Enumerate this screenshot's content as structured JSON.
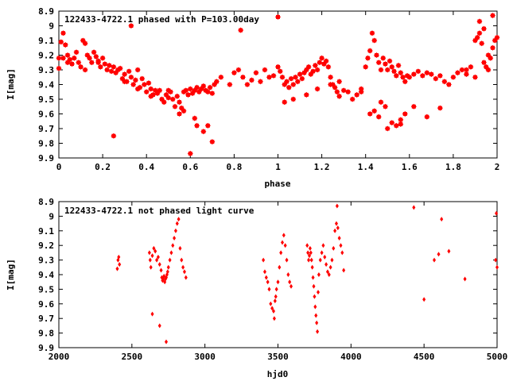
{
  "chart_data": [
    {
      "type": "scatter",
      "title": "122433-4722.1 phased with P=103.00day",
      "xlabel": "phase",
      "ylabel": "I[mag]",
      "xlim": [
        0,
        2
      ],
      "ylim": [
        9.9,
        8.9
      ],
      "y_inverted": true,
      "xticks": [
        "0",
        "0.2",
        "0.4",
        "0.6",
        "0.8",
        "1",
        "1.2",
        "1.4",
        "1.6",
        "1.8",
        "2"
      ],
      "yticks": [
        "8.9",
        "9",
        "9.1",
        "9.2",
        "9.3",
        "9.4",
        "9.5",
        "9.6",
        "9.7",
        "9.8",
        "9.9"
      ],
      "grid": false,
      "marker": "star",
      "color": "#ff0000",
      "series": [
        {
          "x": [
            0.0,
            0.01,
            0.02,
            0.03,
            0.04,
            0.05,
            0.06,
            0.07,
            0.08,
            0.09,
            0.1,
            0.11,
            0.12,
            0.13,
            0.14,
            0.15,
            0.16,
            0.17,
            0.18,
            0.19,
            0.2,
            0.21,
            0.22,
            0.23,
            0.24,
            0.25,
            0.26,
            0.27,
            0.28,
            0.29,
            0.3,
            0.31,
            0.32,
            0.33,
            0.34,
            0.35,
            0.36,
            0.37,
            0.38,
            0.39,
            0.4,
            0.41,
            0.42,
            0.43,
            0.44,
            0.45,
            0.46,
            0.47,
            0.48,
            0.49,
            0.5,
            0.51,
            0.52,
            0.53,
            0.54,
            0.55,
            0.56,
            0.57,
            0.58,
            0.59,
            0.6,
            0.61,
            0.62,
            0.63,
            0.64,
            0.65,
            0.66,
            0.67,
            0.68,
            0.69,
            0.7,
            0.71,
            0.72,
            0.74,
            0.78,
            0.8,
            0.82,
            0.84,
            0.86,
            0.88,
            0.9,
            0.92,
            0.94,
            0.96,
            0.98,
            1.0,
            1.01,
            1.02,
            1.03,
            1.04,
            1.05,
            1.06,
            1.07,
            1.08,
            1.09,
            1.1,
            1.11,
            1.12,
            1.13,
            1.14,
            1.15,
            1.16,
            1.17,
            1.18,
            1.19,
            1.2,
            1.21,
            1.22,
            1.23,
            1.24,
            1.25,
            1.26,
            1.27,
            1.28,
            1.3,
            1.32,
            1.34,
            1.36,
            1.38,
            1.4,
            1.41,
            1.42,
            1.43,
            1.44,
            1.45,
            1.46,
            1.47,
            1.48,
            1.49,
            1.5,
            1.51,
            1.52,
            1.53,
            1.54,
            1.55,
            1.56,
            1.57,
            1.58,
            1.59,
            1.6,
            1.62,
            1.64,
            1.66,
            1.68,
            1.7,
            1.72,
            1.74,
            1.76,
            1.78,
            1.8,
            1.82,
            1.84,
            1.86,
            1.88,
            1.9,
            1.91,
            1.92,
            1.93,
            1.94,
            1.95,
            1.96,
            1.97,
            1.98,
            1.99,
            2.0,
            0.0,
            0.02,
            0.04,
            0.25,
            0.33,
            0.6,
            0.63,
            0.66,
            0.7,
            0.83,
            1.0,
            1.42,
            1.44,
            1.46,
            1.5,
            1.52,
            1.54,
            1.56,
            1.92,
            1.94,
            1.98,
            0.12,
            0.18,
            0.3,
            0.36,
            0.42,
            0.5,
            0.55,
            0.57,
            0.62,
            0.68,
            1.03,
            1.07,
            1.13,
            1.18,
            1.24,
            1.28,
            1.38,
            1.47,
            1.49,
            1.56,
            1.58,
            1.62,
            1.68,
            1.74,
            1.86,
            1.9,
            1.96
          ],
          "y": [
            9.22,
            9.11,
            9.05,
            9.13,
            9.2,
            9.23,
            9.26,
            9.22,
            9.18,
            9.25,
            9.28,
            9.1,
            9.12,
            9.2,
            9.22,
            9.25,
            9.18,
            9.21,
            9.24,
            9.28,
            9.22,
            9.26,
            9.3,
            9.27,
            9.31,
            9.28,
            9.32,
            9.3,
            9.29,
            9.36,
            9.33,
            9.38,
            9.31,
            9.35,
            9.4,
            9.37,
            9.3,
            9.42,
            9.36,
            9.4,
            9.45,
            9.39,
            9.43,
            9.47,
            9.44,
            9.46,
            9.44,
            9.5,
            9.52,
            9.47,
            9.49,
            9.45,
            9.5,
            9.55,
            9.48,
            9.52,
            9.56,
            9.45,
            9.44,
            9.47,
            9.43,
            9.46,
            9.44,
            9.42,
            9.45,
            9.43,
            9.41,
            9.44,
            9.45,
            9.42,
            9.46,
            9.4,
            9.38,
            9.35,
            9.4,
            9.32,
            9.3,
            9.35,
            9.4,
            9.37,
            9.32,
            9.38,
            9.3,
            9.35,
            9.34,
            9.28,
            9.31,
            9.35,
            9.4,
            9.38,
            9.42,
            9.36,
            9.4,
            9.35,
            9.38,
            9.33,
            9.36,
            9.32,
            9.3,
            9.28,
            9.33,
            9.31,
            9.27,
            9.3,
            9.25,
            9.22,
            9.26,
            9.24,
            9.28,
            9.35,
            9.4,
            9.42,
            9.45,
            9.48,
            9.44,
            9.45,
            9.5,
            9.47,
            9.43,
            9.28,
            9.22,
            9.17,
            9.05,
            9.1,
            9.2,
            9.25,
            9.3,
            9.22,
            9.26,
            9.3,
            9.24,
            9.28,
            9.31,
            9.34,
            9.27,
            9.32,
            9.35,
            9.38,
            9.34,
            9.35,
            9.33,
            9.31,
            9.34,
            9.32,
            9.33,
            9.36,
            9.34,
            9.38,
            9.4,
            9.35,
            9.32,
            9.3,
            9.33,
            9.28,
            9.1,
            9.08,
            9.05,
            9.12,
            9.25,
            9.28,
            9.2,
            9.22,
            9.15,
            9.1,
            9.08,
            9.29,
            9.22,
            9.25,
            9.75,
            9.0,
            9.87,
            9.68,
            9.72,
            9.79,
            9.03,
            8.94,
            9.6,
            9.58,
            9.62,
            9.7,
            9.66,
            9.68,
            9.64,
            8.97,
            9.02,
            8.93,
            9.3,
            9.25,
            9.38,
            9.43,
            9.48,
            9.44,
            9.6,
            9.58,
            9.63,
            9.68,
            9.52,
            9.5,
            9.47,
            9.43,
            9.4,
            9.38,
            9.45,
            9.52,
            9.55,
            9.67,
            9.6,
            9.55,
            9.62,
            9.56,
            9.3,
            9.35,
            9.3
          ]
        }
      ]
    },
    {
      "type": "scatter",
      "title": "122433-4722.1 not phased light curve",
      "xlabel": "hjd0",
      "ylabel": "I[mag]",
      "xlim": [
        2000,
        5000
      ],
      "ylim": [
        9.9,
        8.9
      ],
      "y_inverted": true,
      "xticks": [
        "2000",
        "2500",
        "3000",
        "3500",
        "4000",
        "4500",
        "5000"
      ],
      "yticks": [
        "8.9",
        "9",
        "9.1",
        "9.2",
        "9.3",
        "9.4",
        "9.5",
        "9.6",
        "9.7",
        "9.8",
        "9.9"
      ],
      "grid": false,
      "marker": "diamond",
      "color": "#ff0000",
      "series": [
        {
          "x": [
            2400,
            2405,
            2410,
            2415,
            2620,
            2625,
            2630,
            2640,
            2650,
            2660,
            2670,
            2680,
            2690,
            2700,
            2705,
            2710,
            2715,
            2720,
            2725,
            2730,
            2735,
            2740,
            2745,
            2750,
            2760,
            2770,
            2780,
            2790,
            2800,
            2810,
            2820,
            2830,
            2840,
            2850,
            2860,
            2870,
            2640,
            2690,
            2735,
            3400,
            3410,
            3420,
            3430,
            3440,
            3450,
            3460,
            3470,
            3475,
            3480,
            3485,
            3490,
            3500,
            3510,
            3520,
            3530,
            3540,
            3550,
            3560,
            3570,
            3580,
            3590,
            3700,
            3705,
            3710,
            3715,
            3720,
            3725,
            3730,
            3735,
            3740,
            3745,
            3750,
            3755,
            3760,
            3765,
            3770,
            3775,
            3780,
            3790,
            3800,
            3810,
            3820,
            3830,
            3840,
            3850,
            3860,
            3870,
            3880,
            3890,
            3900,
            3905,
            3910,
            3920,
            3930,
            3940,
            3950,
            4430,
            4500,
            4570,
            4600,
            4620,
            4670,
            4780,
            4990,
            5000,
            4995
          ],
          "y": [
            9.36,
            9.3,
            9.28,
            9.33,
            9.25,
            9.3,
            9.35,
            9.27,
            9.22,
            9.24,
            9.3,
            9.28,
            9.33,
            9.37,
            9.42,
            9.44,
            9.43,
            9.41,
            9.45,
            9.43,
            9.42,
            9.4,
            9.38,
            9.35,
            9.3,
            9.25,
            9.2,
            9.15,
            9.1,
            9.05,
            9.02,
            9.22,
            9.3,
            9.35,
            9.38,
            9.42,
            9.67,
            9.75,
            9.86,
            9.3,
            9.38,
            9.42,
            9.45,
            9.5,
            9.6,
            9.63,
            9.65,
            9.7,
            9.58,
            9.55,
            9.5,
            9.45,
            9.35,
            9.25,
            9.18,
            9.13,
            9.2,
            9.3,
            9.4,
            9.45,
            9.48,
            9.2,
            9.25,
            9.3,
            9.27,
            9.22,
            9.25,
            9.3,
            9.35,
            9.42,
            9.48,
            9.55,
            9.62,
            9.68,
            9.73,
            9.79,
            9.52,
            9.4,
            9.3,
            9.25,
            9.2,
            9.28,
            9.33,
            9.38,
            9.4,
            9.35,
            9.3,
            9.22,
            9.1,
            9.05,
            8.93,
            9.08,
            9.15,
            9.2,
            9.25,
            9.37,
            8.94,
            9.57,
            9.3,
            9.26,
            9.02,
            9.24,
            9.43,
            9.3,
            9.35,
            8.98
          ]
        }
      ]
    }
  ]
}
